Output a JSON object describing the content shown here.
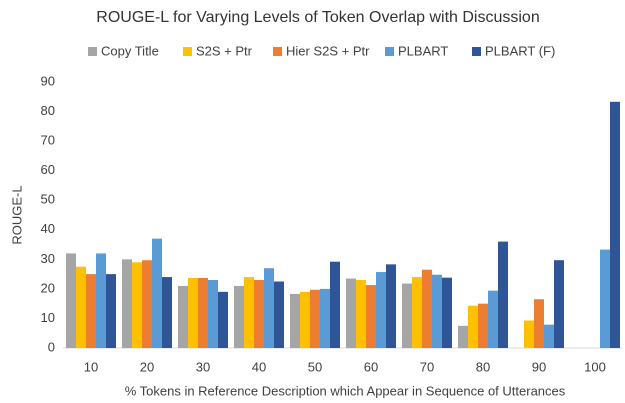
{
  "chart_data": {
    "type": "bar",
    "title": "ROUGE-L for Varying Levels of Token Overlap with Discussion",
    "x_label": "% Tokens in Reference Description which Appear in Sequence of Utterances",
    "y_label": "ROUGE-L",
    "categories": [
      "10",
      "20",
      "30",
      "40",
      "50",
      "60",
      "70",
      "80",
      "90",
      "100"
    ],
    "series": [
      {
        "name": "Copy Title",
        "color": "#a5a5a5",
        "values": [
          32,
          30,
          21,
          21,
          18.3,
          23.5,
          21.8,
          7.5,
          null,
          null
        ]
      },
      {
        "name": "S2S + Ptr",
        "color": "#ffc000",
        "values": [
          27.5,
          29,
          23.7,
          24,
          19,
          23,
          24,
          14.3,
          9.3,
          null
        ]
      },
      {
        "name": "Hier S2S + Ptr",
        "color": "#ed7d31",
        "values": [
          25,
          29.7,
          23.7,
          23,
          19.7,
          21.3,
          26.5,
          15,
          16.5,
          null
        ]
      },
      {
        "name": "PLBART",
        "color": "#5b9bd5",
        "values": [
          32,
          37,
          23,
          27,
          20,
          25.7,
          24.8,
          19.4,
          7.9,
          33.3
        ]
      },
      {
        "name": "PLBART (F)",
        "color": "#2f5597",
        "values": [
          25,
          24,
          19,
          22.5,
          29.2,
          28.3,
          23.8,
          36,
          29.7,
          83.3
        ]
      }
    ],
    "ylim": [
      0,
      90
    ],
    "yticks": [
      0,
      10,
      20,
      30,
      40,
      50,
      60,
      70,
      80,
      90
    ],
    "grid": false
  }
}
